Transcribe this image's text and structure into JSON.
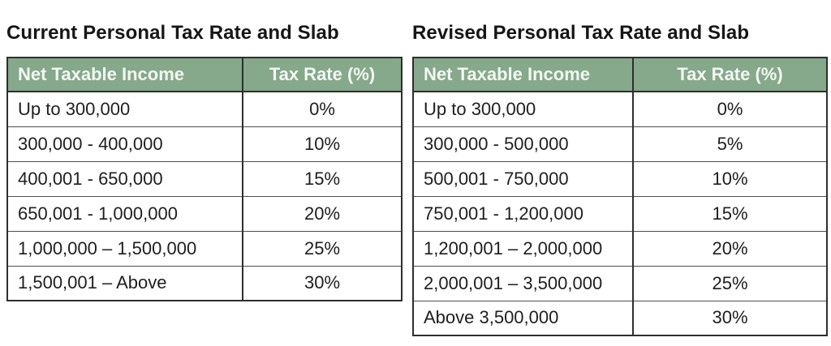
{
  "colors": {
    "header_bg": "#85a98a",
    "header_text": "#f3f7f3",
    "body_text": "#1e1e1e",
    "border_dark": "#2e2e2e",
    "row_line": "#4d4d4d",
    "page_bg": "#ffffff"
  },
  "chart_data": [
    {
      "type": "table",
      "title": "Current Personal Tax Rate and Slab",
      "columns": [
        "Net Taxable Income",
        "Tax Rate (%)"
      ],
      "rows": [
        [
          "Up to 300,000",
          "0%"
        ],
        [
          "300,000 - 400,000",
          "10%"
        ],
        [
          "400,001 - 650,000",
          "15%"
        ],
        [
          "650,001 - 1,000,000",
          "20%"
        ],
        [
          "1,000,000 – 1,500,000",
          "25%"
        ],
        [
          "1,500,001 – Above",
          "30%"
        ]
      ]
    },
    {
      "type": "table",
      "title": "Revised Personal Tax Rate and Slab",
      "columns": [
        "Net Taxable Income",
        "Tax Rate (%)"
      ],
      "rows": [
        [
          "Up to 300,000",
          "0%"
        ],
        [
          "300,000 - 500,000",
          "5%"
        ],
        [
          "500,001 - 750,000",
          "10%"
        ],
        [
          "750,001 - 1,200,000",
          "15%"
        ],
        [
          "1,200,001 – 2,000,000",
          "20%"
        ],
        [
          "2,000,001 – 3,500,000",
          "25%"
        ],
        [
          "Above 3,500,000",
          "30%"
        ]
      ]
    }
  ]
}
